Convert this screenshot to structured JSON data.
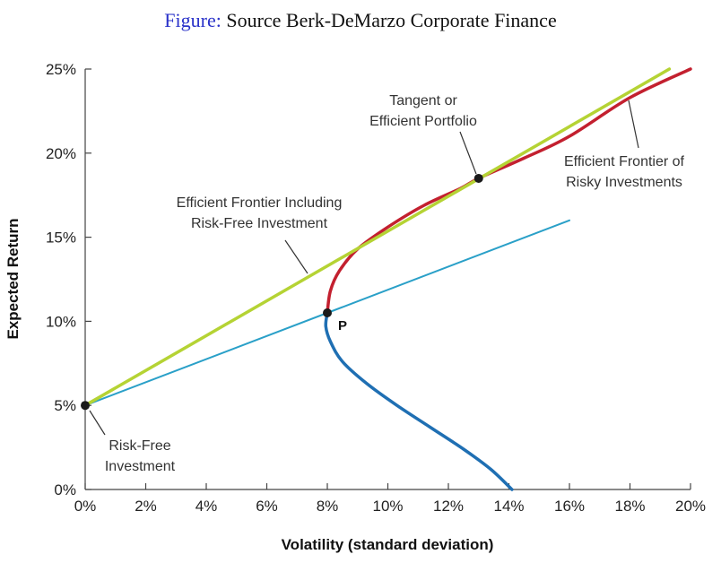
{
  "caption": {
    "lead": "Figure:",
    "text": "Source Berk-DeMarzo Corporate Finance"
  },
  "colors": {
    "caption_lead": "#2a32c9",
    "green_line": "#b5d334",
    "red_frontier": "#c3202f",
    "blue_frontier": "#1f6fb3",
    "cyan_line": "#2aa0c8",
    "axis": "#444444",
    "point": "#1a1a1a"
  },
  "chart_data": {
    "type": "line",
    "xlabel": "Volatility (standard deviation)",
    "ylabel": "Expected Return",
    "xlim": [
      0,
      20
    ],
    "ylim": [
      0,
      25
    ],
    "x_ticks": [
      "0%",
      "2%",
      "4%",
      "6%",
      "8%",
      "10%",
      "12%",
      "14%",
      "16%",
      "18%",
      "20%"
    ],
    "y_ticks": [
      "0%",
      "5%",
      "10%",
      "15%",
      "20%",
      "25%"
    ],
    "grid": false,
    "series": [
      {
        "key": "cml",
        "color": "#b5d334",
        "points": [
          [
            0,
            5
          ],
          [
            19.3,
            25
          ]
        ]
      },
      {
        "key": "frontier_upper",
        "color": "#c3202f",
        "points": [
          [
            8.0,
            10.5
          ],
          [
            8.1,
            11.8
          ],
          [
            8.4,
            13.0
          ],
          [
            9.0,
            14.3
          ],
          [
            10.0,
            15.6
          ],
          [
            11.2,
            16.9
          ],
          [
            12.4,
            17.9
          ],
          [
            13.0,
            18.5
          ],
          [
            14.5,
            19.7
          ],
          [
            16.0,
            21.0
          ],
          [
            18.0,
            23.3
          ],
          [
            20.0,
            25.0
          ]
        ]
      },
      {
        "key": "frontier_lower",
        "color": "#1f6fb3",
        "points": [
          [
            8.0,
            10.5
          ],
          [
            7.95,
            9.7
          ],
          [
            8.1,
            8.8
          ],
          [
            8.5,
            7.6
          ],
          [
            9.3,
            6.3
          ],
          [
            10.3,
            5.0
          ],
          [
            11.4,
            3.7
          ],
          [
            12.5,
            2.4
          ],
          [
            13.4,
            1.2
          ],
          [
            14.1,
            0.0
          ]
        ]
      },
      {
        "key": "line_through_p",
        "color": "#2aa0c8",
        "points": [
          [
            0,
            5
          ],
          [
            16,
            16
          ]
        ]
      }
    ],
    "points": [
      {
        "key": "risk_free",
        "x": 0,
        "y": 5
      },
      {
        "key": "p",
        "x": 8,
        "y": 10.5
      },
      {
        "key": "tangent",
        "x": 13,
        "y": 18.5
      }
    ],
    "annotations": {
      "tangent_line1": "Tangent or",
      "tangent_line2": "Efficient Portfolio",
      "frontier_line1": "Efficient Frontier of",
      "frontier_line2": "Risky Investments",
      "cml_line1": "Efficient Frontier Including",
      "cml_line2": "Risk-Free Investment",
      "rf_line1": "Risk-Free",
      "rf_line2": "Investment",
      "p_label": "P"
    }
  }
}
